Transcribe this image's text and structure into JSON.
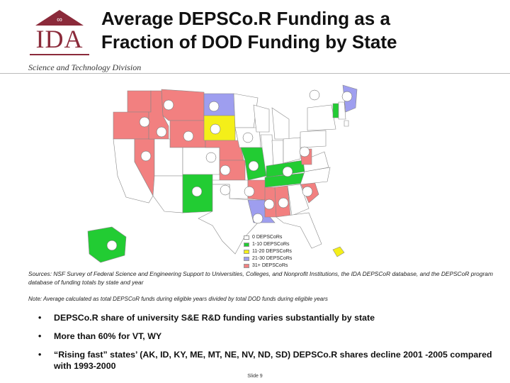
{
  "header": {
    "title_line1": "Average DEPSCo.R Funding as a",
    "title_line2": "Fraction of DOD Funding by State",
    "logo_text": "IDA",
    "division": "Science and Technology Division"
  },
  "legend": {
    "items": [
      {
        "label": "0 DEPSCoRs",
        "color": "#ffffff"
      },
      {
        "label": "1-10 DEPSCoRs",
        "color": "#22cc33"
      },
      {
        "label": "11-20 DEPSCoRs",
        "color": "#f4ef19"
      },
      {
        "label": "21-30 DEPSCoRs",
        "color": "#9e9eef"
      },
      {
        "label": "31+ DEPSCoRs",
        "color": "#f28080"
      }
    ]
  },
  "sources": "Sources: NSF Survey of Federal Science and Engineering Support to Universities, Colleges, and Nonprofit Institutions, the IDA DEPSCoR database, and the DEPSCoR program database of funding totals by state and year",
  "note": "Note: Average calculated as total DEPSCoR funds during eligible years divided by total DOD funds during eligible years",
  "bullets": [
    "DEPSCo.R share of university S&E R&D funding varies substantially by state",
    "More than 60% for VT, WY",
    "“Rising fast” states’ (AK, ID, KY, ME, MT, NE, NV, ND, SD) DEPSCo.R shares decline 2001 -2005 compared with 1993-2000"
  ],
  "bullet_symbol": "•",
  "footer": "Slide 9"
}
